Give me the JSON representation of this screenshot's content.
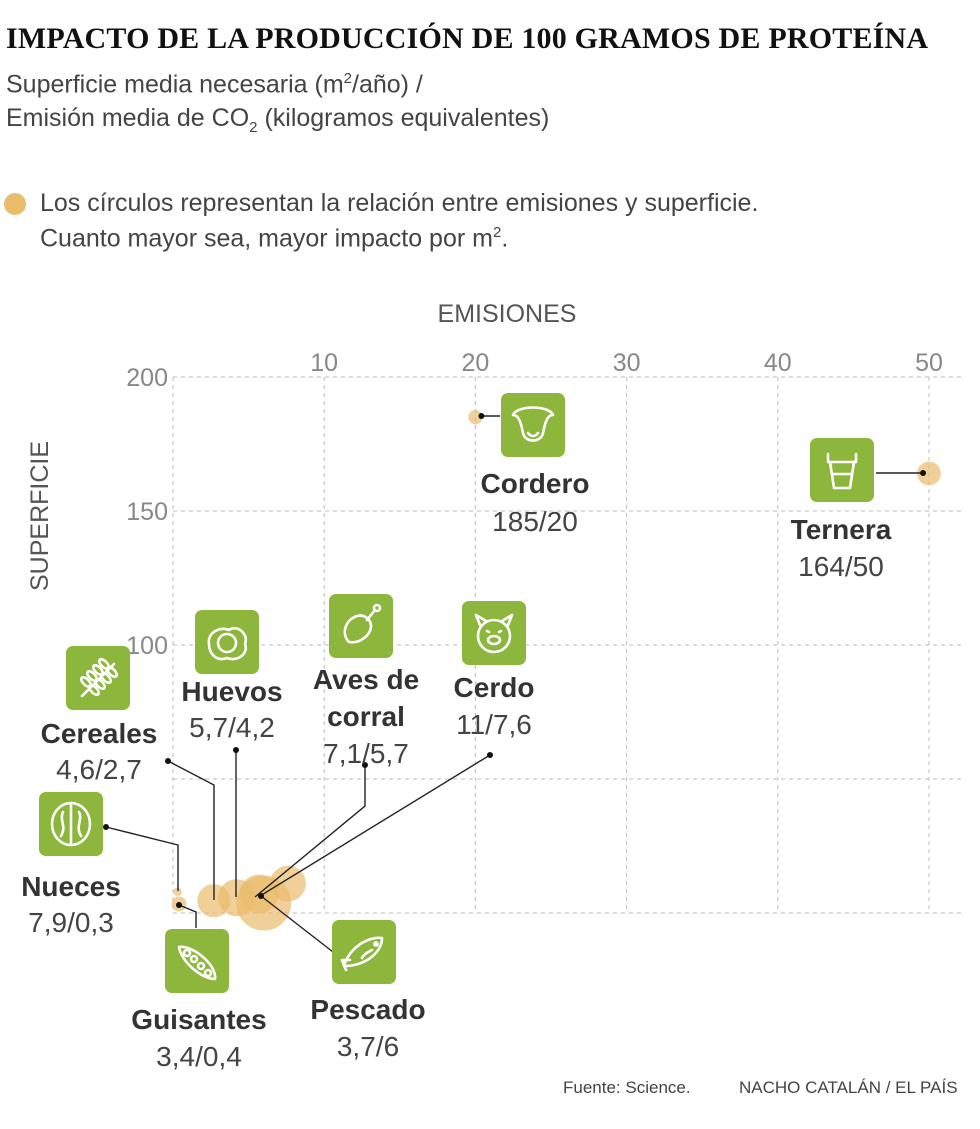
{
  "title": "IMPACTO DE LA PRODUCCIÓN DE 100 GRAMOS DE PROTEÍNA",
  "subtitle": {
    "line1_a": "Superficie media necesaria (m",
    "line1_sup": "2",
    "line1_b": "/año) /",
    "line2_a": "Emisión media de CO",
    "line2_sub": "2",
    "line2_b": " (kilogramos equivalentes)"
  },
  "legend": {
    "line1": "Los círculos representan la relación entre emisiones y superficie.",
    "line2_a": "Cuanto mayor sea, mayor impacto por m",
    "line2_sup": "2",
    "line2_b": "."
  },
  "footer": {
    "source": "Fuente: Science.",
    "credit": "NACHO CATALÁN / EL PAÍS"
  },
  "colors": {
    "green": "#8cb63c",
    "bubble": "#e9bc6c",
    "grid": "#bdbdbd",
    "axis_text": "#888888",
    "label": "#333333"
  },
  "chart_data": {
    "type": "scatter",
    "xlabel": "EMISIONES",
    "ylabel": "SUPERFICIE",
    "xlim": [
      0,
      50
    ],
    "ylim": [
      0,
      200
    ],
    "x_ticks": [
      10,
      20,
      30,
      40,
      50
    ],
    "y_ticks": [
      100,
      150,
      200
    ],
    "grid": true,
    "points": [
      {
        "name": "Cordero",
        "label": "185/20",
        "surface": 185,
        "emissions": 20,
        "icon": "sheep-icon"
      },
      {
        "name": "Ternera",
        "label": "164/50",
        "surface": 164,
        "emissions": 50,
        "icon": "cow-icon"
      },
      {
        "name": "Huevos",
        "label": "5,7/4,2",
        "surface": 5.7,
        "emissions": 4.2,
        "icon": "egg-icon"
      },
      {
        "name": "Aves de corral",
        "label": "7,1/5,7",
        "surface": 7.1,
        "emissions": 5.7,
        "icon": "chicken-leg-icon"
      },
      {
        "name": "Cerdo",
        "label": "11/7,6",
        "surface": 11,
        "emissions": 7.6,
        "icon": "pig-icon"
      },
      {
        "name": "Cereales",
        "label": "4,6/2,7",
        "surface": 4.6,
        "emissions": 2.7,
        "icon": "wheat-icon"
      },
      {
        "name": "Nueces",
        "label": "7,9/0,3",
        "surface": 7.9,
        "emissions": 0.3,
        "icon": "walnut-icon"
      },
      {
        "name": "Guisantes",
        "label": "3,4/0,4",
        "surface": 3.4,
        "emissions": 0.4,
        "icon": "pea-pod-icon"
      },
      {
        "name": "Pescado",
        "label": "3,7/6",
        "surface": 3.7,
        "emissions": 6,
        "icon": "fish-icon"
      }
    ]
  }
}
